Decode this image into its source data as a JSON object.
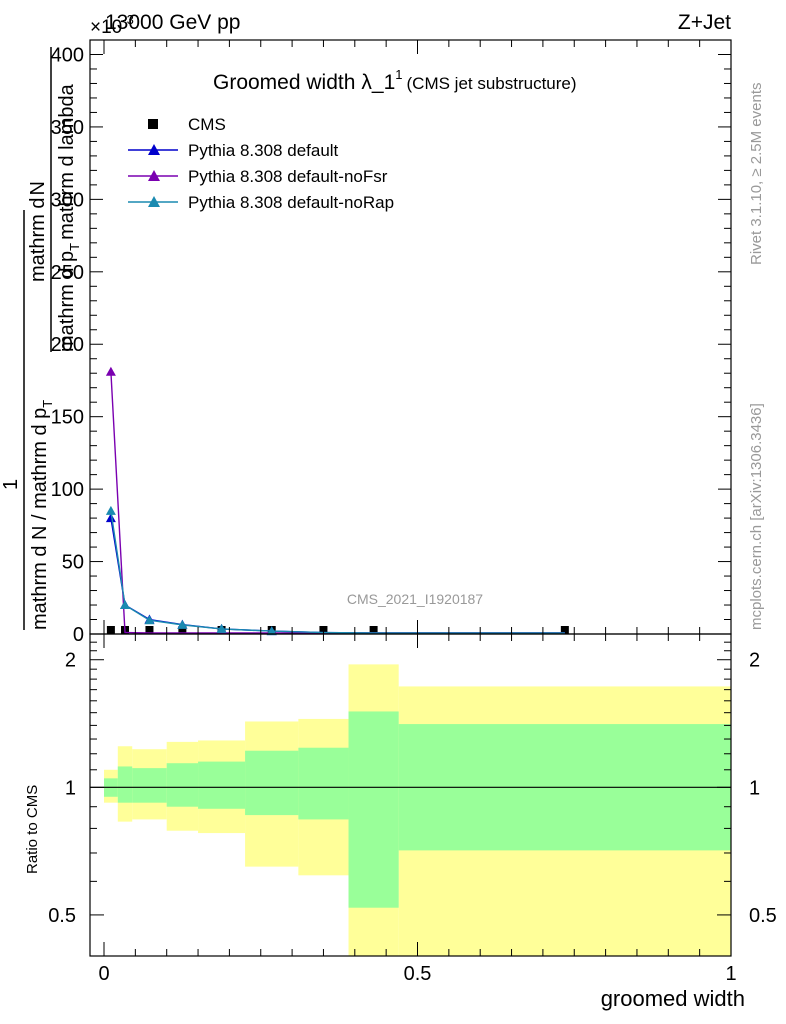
{
  "header": {
    "energy": "13000 GeV pp",
    "process": "Z+Jet",
    "exponent": "×10",
    "exponent_power": "-3"
  },
  "side_labels": {
    "rivet": "Rivet 3.1.10, ≥ 2.5M events",
    "mcplots": "mcplots.cern.ch [arXiv:1306.3436]"
  },
  "main_plot": {
    "title_main": "Groomed width",
    "title_lambda": "λ_1",
    "title_sup": "1",
    "title_sub": "(CMS jet substructure)",
    "ylabel_top_frac_num": "mathrm d",
    "ylabel_top_frac_num2": "N",
    "ylabel_top_frac_den": "mathrm d p",
    "ylabel_top_frac_den_sub": "T",
    "ylabel_top_frac_den2": "mathrm d lambda",
    "ylabel_left_num": "1",
    "ylabel_left_den": "mathrm d N / mathrm d p",
    "ylabel_left_den_sub": "T",
    "watermark": "CMS_2021_I1920187",
    "y_ticks": [
      "0",
      "50",
      "100",
      "150",
      "200",
      "250",
      "300",
      "350",
      "400"
    ]
  },
  "ratio_plot": {
    "ylabel": "Ratio to CMS",
    "y_ticks": [
      "0.5",
      "1",
      "2"
    ],
    "x_ticks": [
      "0",
      "0.5",
      "1"
    ],
    "xlabel": "groomed width"
  },
  "legend": [
    {
      "name": "CMS",
      "marker": "square",
      "color": "#000000"
    },
    {
      "name": "Pythia 8.308 default",
      "marker": "triangle",
      "color": "#0000cc"
    },
    {
      "name": "Pythia 8.308 default-noFsr",
      "marker": "triangle",
      "color": "#7a00b0"
    },
    {
      "name": "Pythia 8.308 default-noRap",
      "marker": "triangle",
      "color": "#1a8ab0"
    }
  ],
  "chart_data": {
    "type": "line",
    "xlim": [
      0,
      1
    ],
    "ylim": [
      0,
      0.41
    ],
    "ratio_ylim": [
      0.4,
      2.3
    ],
    "ratio_scale": "log",
    "bins": [
      0,
      0.022,
      0.045,
      0.1,
      0.15,
      0.225,
      0.31,
      0.39,
      0.47,
      1.0
    ],
    "series": [
      {
        "name": "CMS",
        "x": [
          0.011,
          0.0335,
          0.0725,
          0.125,
          0.1875,
          0.2675,
          0.35,
          0.43,
          0.735
        ],
        "values": [
          0.0012,
          0.0006,
          0.0005,
          0.0004,
          0.0003,
          0.0003,
          0.0002,
          0.0003,
          0.0003
        ]
      },
      {
        "name": "Pythia 8.308 default",
        "x": [
          0.011,
          0.0335,
          0.0725,
          0.125,
          0.1875,
          0.2675,
          0.35,
          0.43,
          0.735
        ],
        "values": [
          0.08,
          0.02,
          0.01,
          0.0065,
          0.0035,
          0.002,
          0.001,
          0.0004,
          0.0001
        ]
      },
      {
        "name": "Pythia 8.308 default-noFsr",
        "x": [
          0.011,
          0.0335,
          0.0725,
          0.125,
          0.1875,
          0.2675,
          0.35,
          0.43,
          0.735
        ],
        "values": [
          0.181,
          0.001,
          0.0005,
          0.0003,
          0.0002,
          0.0001,
          0.0001,
          0.0001,
          0.0001
        ]
      },
      {
        "name": "Pythia 8.308 default-noRap",
        "x": [
          0.011,
          0.0335,
          0.0725,
          0.125,
          0.1875,
          0.2675,
          0.35,
          0.43,
          0.735
        ],
        "values": [
          0.085,
          0.02,
          0.0095,
          0.0063,
          0.0035,
          0.002,
          0.001,
          0.0004,
          0.0001
        ]
      }
    ],
    "ratio_bands": {
      "bins": [
        0,
        0.022,
        0.045,
        0.1,
        0.15,
        0.225,
        0.31,
        0.39,
        0.47,
        1.0
      ],
      "inner_low": [
        0.95,
        0.92,
        0.92,
        0.9,
        0.89,
        0.86,
        0.84,
        0.52,
        0.71
      ],
      "inner_high": [
        1.05,
        1.12,
        1.11,
        1.14,
        1.15,
        1.22,
        1.24,
        1.51,
        1.41
      ],
      "outer_low": [
        0.92,
        0.83,
        0.84,
        0.79,
        0.78,
        0.65,
        0.62,
        0.35,
        0.35
      ],
      "outer_high": [
        1.1,
        1.25,
        1.23,
        1.28,
        1.29,
        1.43,
        1.45,
        1.95,
        1.73
      ]
    }
  }
}
